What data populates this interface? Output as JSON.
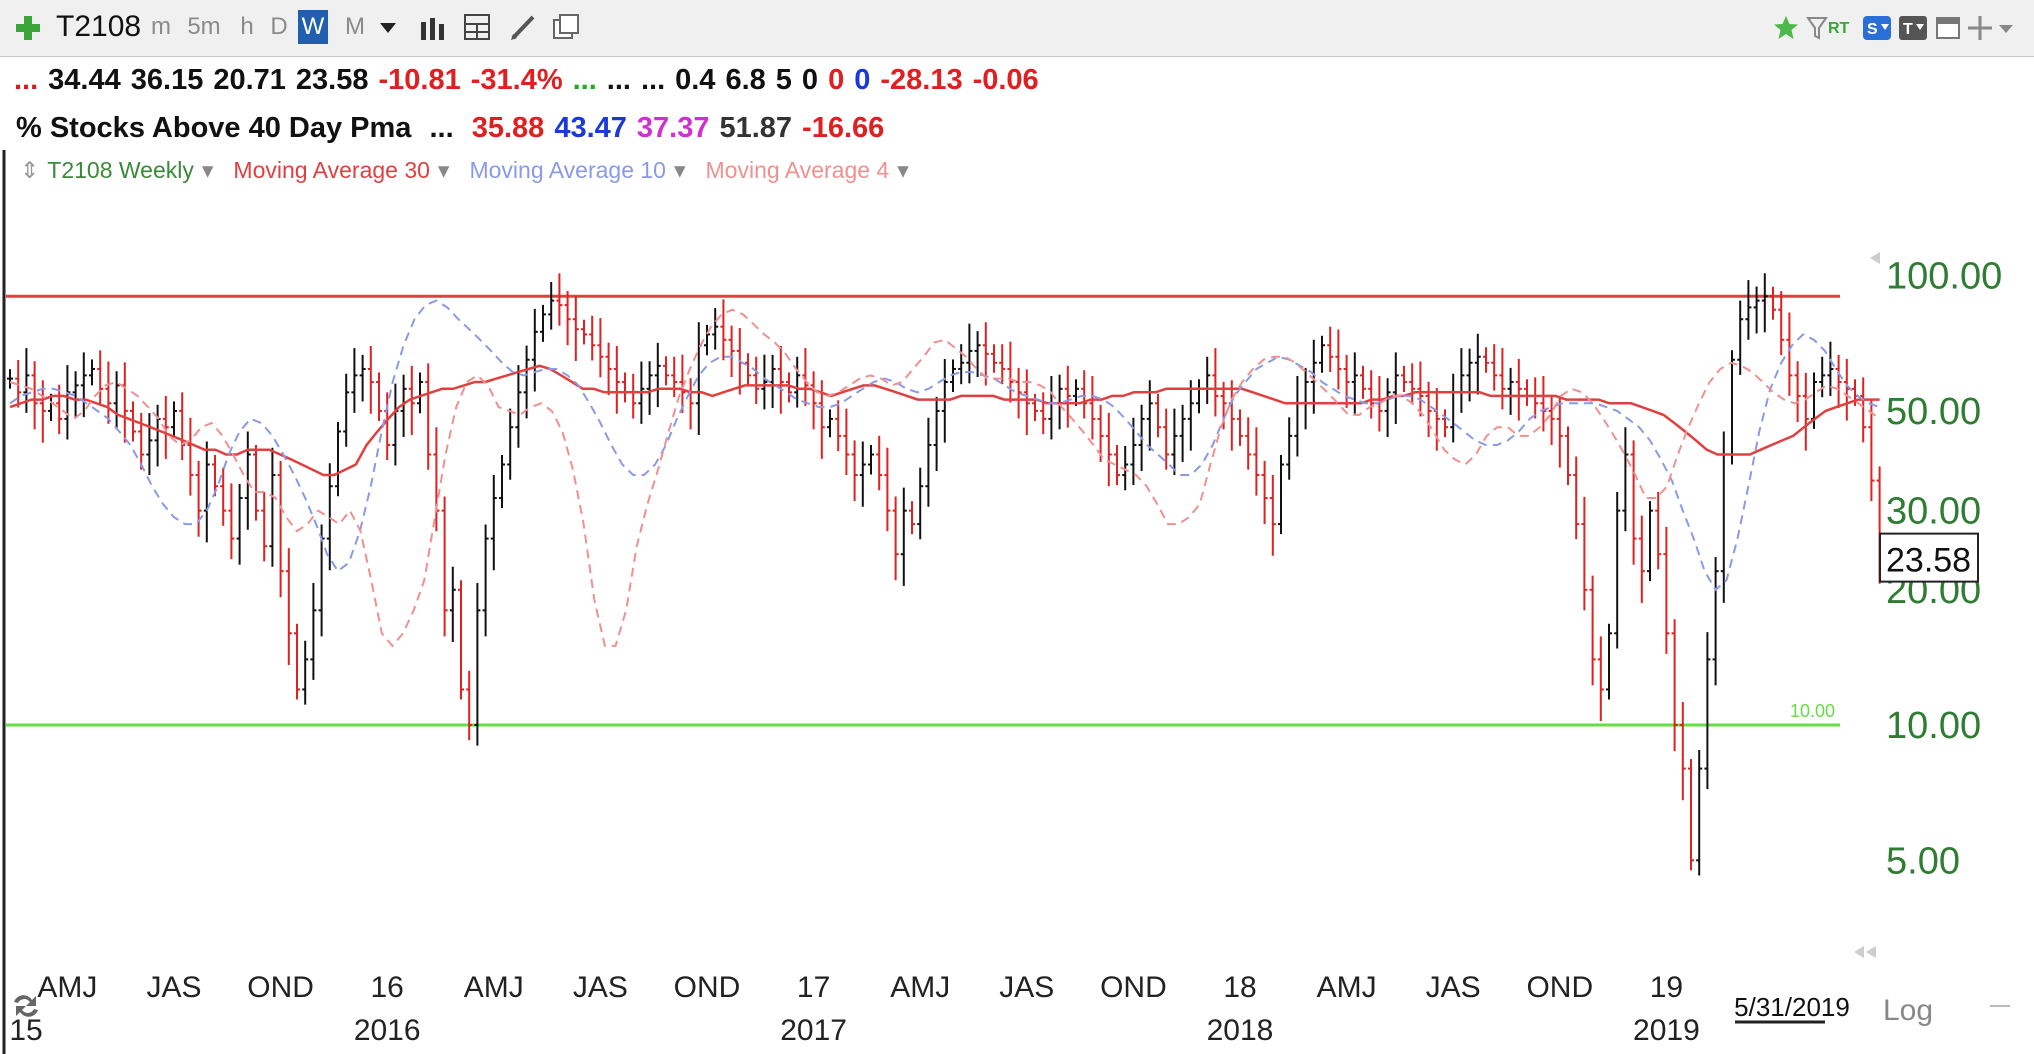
{
  "header": {
    "symbol": "T2108",
    "timeframes": [
      "m",
      "5m",
      "h",
      "D",
      "W",
      "M"
    ],
    "selected_timeframe": "W",
    "rt_label": "RT"
  },
  "quote_line": {
    "values": [
      {
        "text": "...",
        "color": "#d02020"
      },
      {
        "text": "34.44",
        "color": "#111111"
      },
      {
        "text": "36.15",
        "color": "#111111"
      },
      {
        "text": "20.71",
        "color": "#111111"
      },
      {
        "text": "23.58",
        "color": "#111111"
      },
      {
        "text": "-10.81",
        "color": "#e02020"
      },
      {
        "text": "-31.4%",
        "color": "#e02020"
      },
      {
        "text": "...",
        "color": "#22aa22"
      },
      {
        "text": "...",
        "color": "#111111"
      },
      {
        "text": "...",
        "color": "#111111"
      },
      {
        "text": "0.4",
        "color": "#111111"
      },
      {
        "text": "6.8",
        "color": "#111111"
      },
      {
        "text": "5",
        "color": "#111111"
      },
      {
        "text": "0",
        "color": "#111111"
      },
      {
        "text": "0",
        "color": "#e02020"
      },
      {
        "text": "0",
        "color": "#1a3ad8"
      },
      {
        "text": "-28.13",
        "color": "#e02020"
      },
      {
        "text": "-0.06",
        "color": "#e02020"
      }
    ]
  },
  "indicator_line": {
    "name": "% Stocks Above 40 Day Pma",
    "ellipsis": "...",
    "values": [
      {
        "text": "35.88",
        "color": "#e02020"
      },
      {
        "text": "43.47",
        "color": "#1a3ad8"
      },
      {
        "text": "37.37",
        "color": "#d030d0"
      },
      {
        "text": "51.87",
        "color": "#333333"
      },
      {
        "text": "-16.66",
        "color": "#e02020"
      }
    ]
  },
  "studies": [
    {
      "label": "T2108 Weekly",
      "color": "#3a8a3a"
    },
    {
      "label": "Moving Average 30",
      "color": "#e04040"
    },
    {
      "label": "Moving Average 10",
      "color": "#8a9ae8"
    },
    {
      "label": "Moving Average 4",
      "color": "#f09090"
    }
  ],
  "chart_data": {
    "type": "line",
    "scale": "log",
    "ylim": [
      3.0,
      140.0
    ],
    "y_ticks": [
      "100.00",
      "50.00",
      "30.00",
      "20.00",
      "10.00",
      "5.00"
    ],
    "y_tick_values": [
      100,
      50,
      30,
      20,
      10,
      5
    ],
    "last_value_label": "23.58",
    "last_value": 23.58,
    "hlines": [
      {
        "value": 90,
        "color": "#e04040",
        "label": ""
      },
      {
        "value": 10,
        "color": "#66dd44",
        "label": "10.00"
      }
    ],
    "x_month_labels": [
      "AMJ",
      "JAS",
      "OND",
      "16",
      "AMJ",
      "JAS",
      "OND",
      "17",
      "AMJ",
      "JAS",
      "OND",
      "18",
      "AMJ",
      "JAS",
      "OND",
      "19"
    ],
    "x_month_weeks": [
      7,
      20,
      33,
      46,
      59,
      72,
      85,
      98,
      111,
      124,
      137,
      150,
      163,
      176,
      189,
      202
    ],
    "x_year_labels": [
      "15",
      "2016",
      "2017",
      "2018",
      "2019"
    ],
    "x_year_weeks": [
      -2,
      46,
      98,
      150,
      202
    ],
    "date_label": "5/31/2019",
    "log_label": "Log",
    "bar_colors": {
      "up": "#111111",
      "down": "#dd2222"
    },
    "series": [
      {
        "name": "T2108 Weekly",
        "style": "ohlc-bars",
        "close": [
          59,
          55,
          60,
          52,
          50,
          52,
          48,
          55,
          57,
          60,
          62,
          56,
          52,
          57,
          50,
          45,
          40,
          43,
          48,
          46,
          50,
          42,
          36,
          30,
          38,
          34,
          30,
          26,
          32,
          40,
          30,
          25,
          36,
          22,
          16,
          12,
          14,
          18,
          26,
          34,
          45,
          55,
          60,
          62,
          58,
          50,
          42,
          50,
          56,
          52,
          58,
          40,
          30,
          18,
          20,
          12,
          10,
          18,
          26,
          32,
          38,
          46,
          55,
          65,
          75,
          82,
          88,
          86,
          80,
          76,
          74,
          70,
          66,
          62,
          58,
          55,
          52,
          56,
          60,
          63,
          60,
          58,
          55,
          52,
          70,
          74,
          77,
          72,
          68,
          64,
          60,
          56,
          58,
          62,
          58,
          55,
          60,
          57,
          52,
          46,
          48,
          44,
          40,
          36,
          38,
          40,
          36,
          30,
          24,
          30,
          28,
          34,
          42,
          50,
          58,
          62,
          64,
          68,
          70,
          67,
          64,
          62,
          58,
          55,
          52,
          50,
          48,
          52,
          56,
          54,
          56,
          52,
          48,
          44,
          40,
          36,
          38,
          42,
          48,
          52,
          46,
          40,
          44,
          48,
          52,
          56,
          60,
          54,
          52,
          48,
          44,
          40,
          36,
          32,
          28,
          38,
          44,
          52,
          58,
          64,
          70,
          66,
          62,
          58,
          60,
          56,
          52,
          50,
          55,
          60,
          58,
          56,
          54,
          50,
          48,
          46,
          55,
          60,
          64,
          66,
          64,
          60,
          56,
          58,
          56,
          54,
          52,
          50,
          48,
          44,
          36,
          28,
          20,
          14,
          12,
          16,
          30,
          40,
          26,
          22,
          30,
          24,
          16,
          10,
          8,
          5,
          8,
          14,
          22,
          40,
          65,
          80,
          85,
          88,
          90,
          84,
          72,
          60,
          54,
          48,
          58,
          60,
          62,
          58,
          56,
          54,
          46,
          35,
          23.58
        ]
      },
      {
        "name": "Moving Average 30",
        "color": "#e04040",
        "style": "solid",
        "values": [
          51,
          52,
          53,
          53,
          54,
          54,
          53,
          53,
          52,
          51,
          49,
          48,
          47,
          46,
          45,
          44,
          43,
          42,
          41,
          41,
          40,
          40,
          41,
          41,
          41,
          40,
          39,
          38,
          37,
          36,
          36,
          37,
          38,
          42,
          45,
          48,
          51,
          53,
          54,
          55,
          56,
          56,
          57,
          58,
          58,
          59,
          60,
          61,
          62,
          63,
          62,
          60,
          58,
          56,
          56,
          55,
          55,
          55,
          55,
          55,
          56,
          56,
          56,
          55,
          55,
          54,
          55,
          56,
          57,
          57,
          57,
          57,
          57,
          56,
          56,
          55,
          54,
          55,
          56,
          57,
          57,
          56,
          55,
          54,
          53,
          53,
          53,
          53,
          54,
          54,
          54,
          54,
          53,
          53,
          53,
          53,
          52,
          52,
          52,
          52,
          53,
          53,
          54,
          54,
          55,
          55,
          55,
          56,
          56,
          56,
          56,
          56,
          56,
          56,
          56,
          55,
          54,
          53,
          52,
          52,
          52,
          52,
          52,
          52,
          52,
          52,
          53,
          53,
          54,
          54,
          55,
          55,
          55,
          55,
          55,
          55,
          55,
          54,
          54,
          54,
          54,
          54,
          54,
          54,
          53,
          53,
          53,
          53,
          52,
          52,
          52,
          51,
          50,
          49,
          47,
          45,
          43,
          41,
          40,
          40,
          40,
          40,
          41,
          42,
          43,
          44,
          46,
          48,
          50,
          51,
          52,
          53,
          53,
          53
        ]
      },
      {
        "name": "Moving Average 10",
        "color": "#8a9ae8",
        "style": "dashed",
        "values": [
          52,
          54,
          55,
          56,
          56,
          55,
          54,
          52,
          50,
          48,
          45,
          42,
          38,
          34,
          31,
          29,
          28,
          28,
          30,
          34,
          40,
          45,
          48,
          47,
          44,
          40,
          36,
          32,
          28,
          24,
          22,
          23,
          27,
          34,
          45,
          58,
          70,
          80,
          86,
          88,
          85,
          80,
          76,
          72,
          68,
          64,
          61,
          60,
          61,
          62,
          62,
          60,
          57,
          52,
          47,
          42,
          38,
          36,
          36,
          38,
          42,
          48,
          54,
          60,
          64,
          66,
          66,
          64,
          62,
          59,
          57,
          55,
          53,
          52,
          51,
          51,
          52,
          54,
          56,
          58,
          59,
          58,
          56,
          55,
          56,
          58,
          60,
          61,
          61,
          60,
          59,
          57,
          55,
          54,
          53,
          52,
          52,
          53,
          54,
          54,
          53,
          51,
          48,
          45,
          42,
          40,
          38,
          36,
          36,
          38,
          42,
          48,
          54,
          58,
          62,
          64,
          66,
          65,
          63,
          61,
          58,
          56,
          54,
          53,
          52,
          52,
          53,
          54,
          54,
          53,
          51,
          49,
          47,
          45,
          43,
          42,
          42,
          43,
          45,
          48,
          50,
          51,
          52,
          52,
          52,
          52,
          51,
          50,
          48,
          46,
          43,
          39,
          35,
          30,
          26,
          22,
          20,
          21,
          26,
          34,
          45,
          56,
          64,
          70,
          74,
          72,
          68,
          62,
          57,
          54,
          52,
          51
        ]
      },
      {
        "name": "Moving Average 4",
        "color": "#f09090",
        "style": "dashed",
        "values": [
          58,
          57,
          56,
          54,
          52,
          50,
          48,
          50,
          54,
          57,
          58,
          56,
          54,
          51,
          48,
          44,
          42,
          43,
          46,
          47,
          44,
          40,
          36,
          33,
          33,
          32,
          29,
          27,
          28,
          30,
          29,
          28,
          30,
          27,
          21,
          16,
          15,
          16,
          18,
          21,
          29,
          40,
          51,
          58,
          60,
          57,
          51,
          50,
          49,
          51,
          52,
          50,
          45,
          37,
          28,
          19,
          15,
          15,
          18,
          25,
          31,
          37,
          45,
          54,
          62,
          70,
          77,
          82,
          84,
          82,
          78,
          74,
          71,
          67,
          62,
          58,
          55,
          54,
          55,
          57,
          59,
          60,
          59,
          57,
          58,
          62,
          66,
          71,
          72,
          69,
          66,
          62,
          59,
          59,
          59,
          58,
          58,
          57,
          55,
          51,
          48,
          45,
          42,
          39,
          38,
          37,
          36,
          34,
          31,
          28,
          28,
          29,
          31,
          38,
          46,
          53,
          58,
          62,
          65,
          66,
          66,
          64,
          61,
          58,
          55,
          52,
          49,
          49,
          51,
          52,
          54,
          54,
          52,
          49,
          45,
          41,
          39,
          38,
          40,
          44,
          46,
          46,
          44,
          44,
          46,
          49,
          54,
          56,
          55,
          52,
          48,
          44,
          40,
          36,
          32,
          32,
          34,
          40,
          46,
          52,
          58,
          62,
          64,
          63,
          61,
          58,
          55,
          53,
          52,
          53,
          55,
          57,
          56,
          54,
          52,
          50,
          48
        ]
      }
    ]
  }
}
